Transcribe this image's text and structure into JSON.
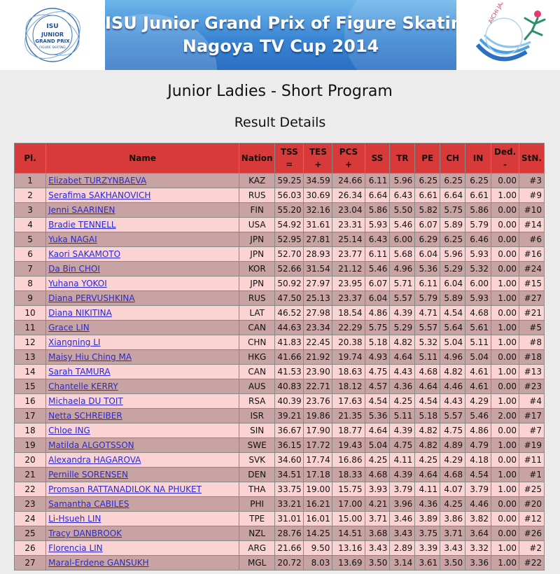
{
  "banner": {
    "line1": "ISU Junior Grand Prix of Figure Skating",
    "line2": "Nagoya TV Cup 2014"
  },
  "logo_left": {
    "isu": "ISU",
    "text1": "JUNIOR",
    "text2": "GRAND PRIX",
    "text3": "FIGURE SKATING"
  },
  "logo_right": {
    "text": "AICHI JAPAN"
  },
  "event_title": "Junior Ladies - Short Program",
  "result_title": "Result Details",
  "table": {
    "headers": {
      "pl": "Pl.",
      "name": "Name",
      "nation": "Nation",
      "tss_a": "TSS",
      "tss_b": "=",
      "tes_a": "TES",
      "tes_b": "+",
      "pcs_a": "PCS",
      "pcs_b": "+",
      "ss": "SS",
      "tr": "TR",
      "pe": "PE",
      "ch": "CH",
      "in": "IN",
      "ded_a": "Ded.",
      "ded_b": "-",
      "stn": "StN."
    },
    "rows": [
      [
        "1",
        "Elizabet TURZYNBAEVA",
        "KAZ",
        "59.25",
        "34.59",
        "24.66",
        "6.11",
        "5.96",
        "6.25",
        "6.25",
        "6.25",
        "0.00",
        "#3"
      ],
      [
        "2",
        "Serafima SAKHANOVICH",
        "RUS",
        "56.03",
        "30.69",
        "26.34",
        "6.64",
        "6.43",
        "6.61",
        "6.64",
        "6.61",
        "1.00",
        "#9"
      ],
      [
        "3",
        "Jenni SAARINEN",
        "FIN",
        "55.20",
        "32.16",
        "23.04",
        "5.86",
        "5.50",
        "5.82",
        "5.75",
        "5.86",
        "0.00",
        "#10"
      ],
      [
        "4",
        "Bradie TENNELL",
        "USA",
        "54.92",
        "31.61",
        "23.31",
        "5.93",
        "5.46",
        "6.07",
        "5.89",
        "5.79",
        "0.00",
        "#14"
      ],
      [
        "5",
        "Yuka NAGAI",
        "JPN",
        "52.95",
        "27.81",
        "25.14",
        "6.43",
        "6.00",
        "6.29",
        "6.25",
        "6.46",
        "0.00",
        "#6"
      ],
      [
        "6",
        "Kaori SAKAMOTO",
        "JPN",
        "52.70",
        "28.93",
        "23.77",
        "6.11",
        "5.68",
        "6.04",
        "5.96",
        "5.93",
        "0.00",
        "#16"
      ],
      [
        "7",
        "Da Bin CHOI",
        "KOR",
        "52.66",
        "31.54",
        "21.12",
        "5.46",
        "4.96",
        "5.36",
        "5.29",
        "5.32",
        "0.00",
        "#24"
      ],
      [
        "8",
        "Yuhana YOKOI",
        "JPN",
        "50.92",
        "27.97",
        "23.95",
        "6.07",
        "5.71",
        "6.11",
        "6.04",
        "6.00",
        "1.00",
        "#15"
      ],
      [
        "9",
        "Diana PERVUSHKINA",
        "RUS",
        "47.50",
        "25.13",
        "23.37",
        "6.04",
        "5.57",
        "5.79",
        "5.89",
        "5.93",
        "1.00",
        "#27"
      ],
      [
        "10",
        "Diana NIKITINA",
        "LAT",
        "46.52",
        "27.98",
        "18.54",
        "4.86",
        "4.39",
        "4.71",
        "4.54",
        "4.68",
        "0.00",
        "#21"
      ],
      [
        "11",
        "Grace LIN",
        "CAN",
        "44.63",
        "23.34",
        "22.29",
        "5.75",
        "5.29",
        "5.57",
        "5.64",
        "5.61",
        "1.00",
        "#5"
      ],
      [
        "12",
        "Xiangning LI",
        "CHN",
        "41.83",
        "22.45",
        "20.38",
        "5.18",
        "4.82",
        "5.32",
        "5.04",
        "5.11",
        "1.00",
        "#8"
      ],
      [
        "13",
        "Maisy Hiu Ching MA",
        "HKG",
        "41.66",
        "21.92",
        "19.74",
        "4.93",
        "4.64",
        "5.11",
        "4.96",
        "5.04",
        "0.00",
        "#18"
      ],
      [
        "14",
        "Sarah TAMURA",
        "CAN",
        "41.53",
        "23.90",
        "18.63",
        "4.75",
        "4.43",
        "4.68",
        "4.82",
        "4.61",
        "1.00",
        "#13"
      ],
      [
        "15",
        "Chantelle KERRY",
        "AUS",
        "40.83",
        "22.71",
        "18.12",
        "4.57",
        "4.36",
        "4.64",
        "4.46",
        "4.61",
        "0.00",
        "#23"
      ],
      [
        "16",
        "Michaela DU TOIT",
        "RSA",
        "40.39",
        "23.76",
        "17.63",
        "4.54",
        "4.25",
        "4.54",
        "4.43",
        "4.29",
        "1.00",
        "#4"
      ],
      [
        "17",
        "Netta SCHREIBER",
        "ISR",
        "39.21",
        "19.86",
        "21.35",
        "5.36",
        "5.11",
        "5.18",
        "5.57",
        "5.46",
        "2.00",
        "#17"
      ],
      [
        "18",
        "Chloe ING",
        "SIN",
        "36.67",
        "17.90",
        "18.77",
        "4.64",
        "4.39",
        "4.82",
        "4.75",
        "4.86",
        "0.00",
        "#7"
      ],
      [
        "19",
        "Matilda ALGOTSSON",
        "SWE",
        "36.15",
        "17.72",
        "19.43",
        "5.04",
        "4.75",
        "4.82",
        "4.89",
        "4.79",
        "1.00",
        "#19"
      ],
      [
        "20",
        "Alexandra HAGAROVA",
        "SVK",
        "34.60",
        "17.74",
        "16.86",
        "4.25",
        "4.11",
        "4.25",
        "4.29",
        "4.18",
        "0.00",
        "#11"
      ],
      [
        "21",
        "Pernille SORENSEN",
        "DEN",
        "34.51",
        "17.18",
        "18.33",
        "4.68",
        "4.39",
        "4.64",
        "4.68",
        "4.54",
        "1.00",
        "#1"
      ],
      [
        "22",
        "Promsan RATTANADILOK NA PHUKET",
        "THA",
        "33.75",
        "19.00",
        "15.75",
        "3.93",
        "3.79",
        "4.11",
        "4.07",
        "3.79",
        "1.00",
        "#25"
      ],
      [
        "23",
        "Samantha CABILES",
        "PHI",
        "33.21",
        "16.21",
        "17.00",
        "4.21",
        "3.96",
        "4.36",
        "4.25",
        "4.46",
        "0.00",
        "#20"
      ],
      [
        "24",
        "Li-Hsueh LIN",
        "TPE",
        "31.01",
        "16.01",
        "15.00",
        "3.71",
        "3.46",
        "3.89",
        "3.86",
        "3.82",
        "0.00",
        "#12"
      ],
      [
        "25",
        "Tracy DANBROOK",
        "NZL",
        "28.76",
        "14.25",
        "14.51",
        "3.68",
        "3.43",
        "3.75",
        "3.71",
        "3.64",
        "0.00",
        "#26"
      ],
      [
        "26",
        "Florencia LIN",
        "ARG",
        "21.66",
        "9.50",
        "13.16",
        "3.43",
        "2.89",
        "3.39",
        "3.43",
        "3.32",
        "1.00",
        "#2"
      ],
      [
        "27",
        "Maral-Erdene GANSUKH",
        "MGL",
        "20.72",
        "8.03",
        "13.69",
        "3.50",
        "3.14",
        "3.61",
        "3.50",
        "3.36",
        "1.00",
        "#22"
      ]
    ]
  },
  "colors": {
    "header_bg": "#d83a3a",
    "row_odd": "#c8a3a3",
    "row_even": "#fbd3d3",
    "link": "#2a2ad0"
  }
}
